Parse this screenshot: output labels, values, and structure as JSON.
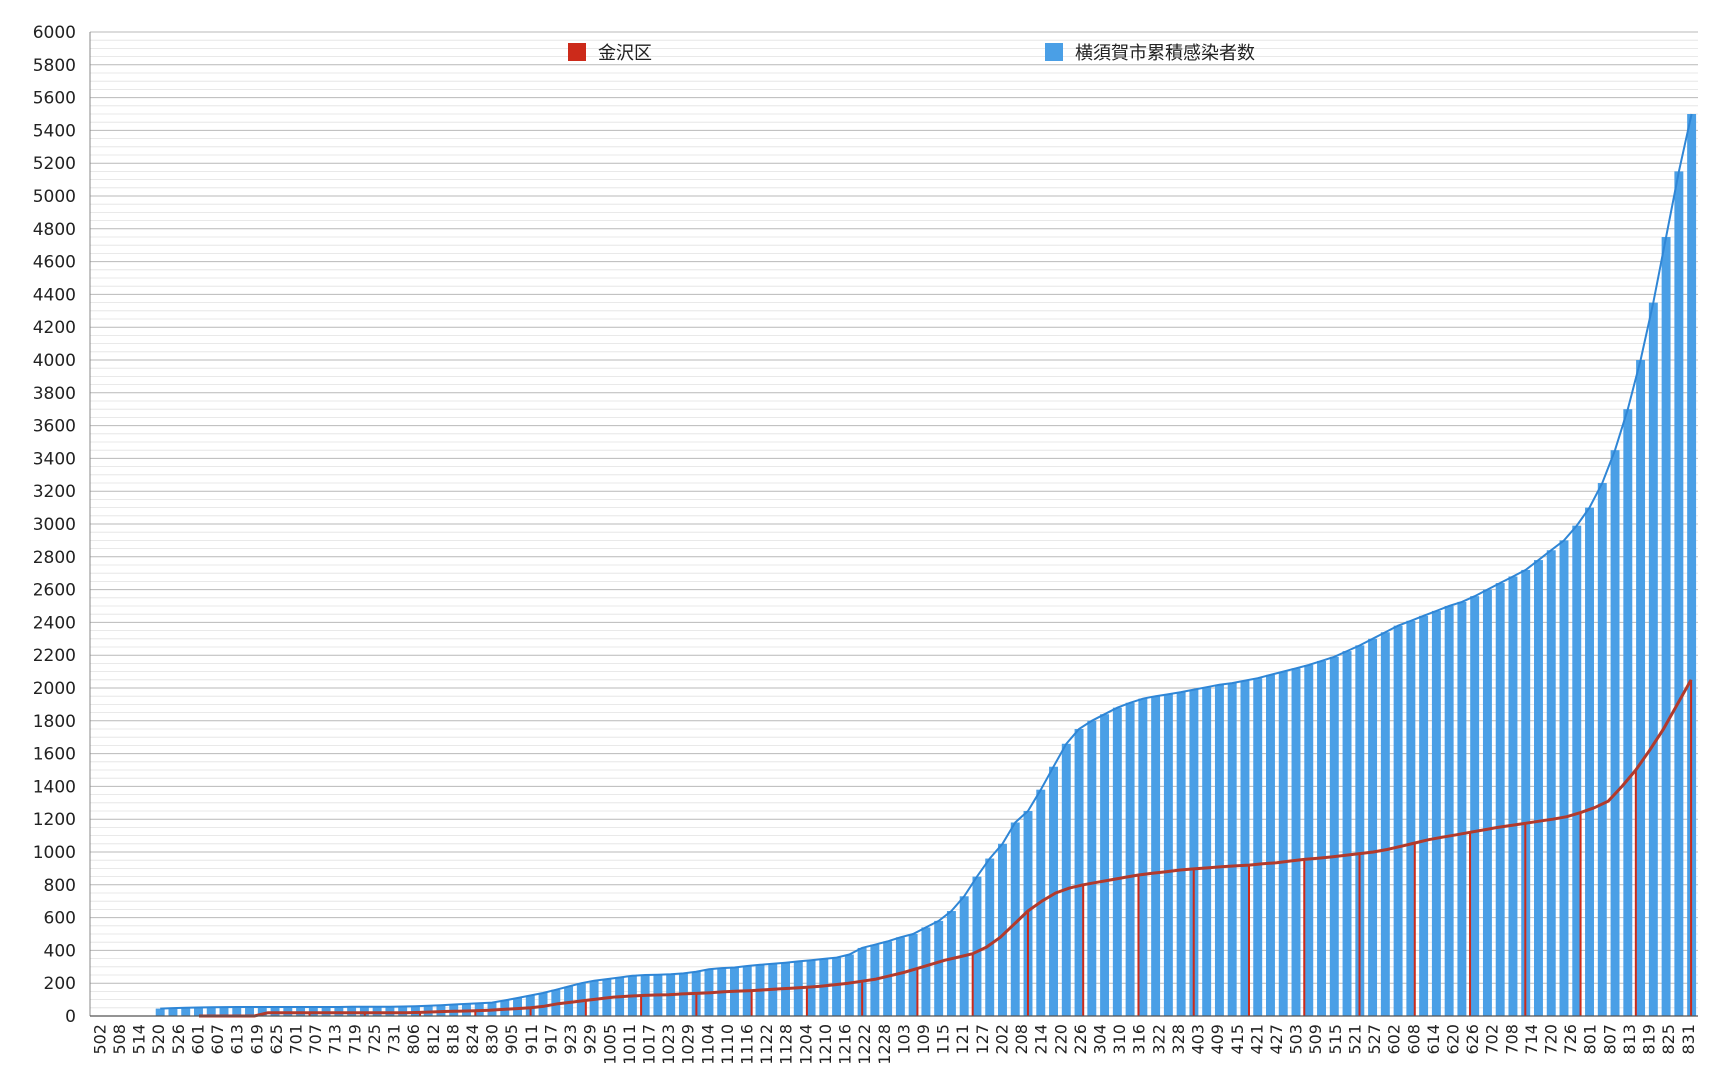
{
  "chart_data": {
    "type": "bar+line",
    "title": "",
    "xlabel": "",
    "ylabel": "",
    "ylim": [
      0,
      6000
    ],
    "ytick_step": 200,
    "grid": true,
    "legend_position": "top",
    "colors": {
      "kanazawa": "#cc2a1a",
      "kanazawa_line": "#b23a2c",
      "yokosuka": "#4a9fe6",
      "grid": "#c8c8c8"
    },
    "series": [
      {
        "name": "金沢区"
      },
      {
        "name": "横須賀市累積感染者数"
      }
    ],
    "x_tick_labels": [
      "502",
      "508",
      "514",
      "520",
      "526",
      "601",
      "607",
      "613",
      "619",
      "625",
      "701",
      "707",
      "713",
      "719",
      "725",
      "731",
      "806",
      "812",
      "818",
      "824",
      "830",
      "905",
      "911",
      "917",
      "923",
      "929",
      "1005",
      "1011",
      "1017",
      "1023",
      "1029",
      "1104",
      "1110",
      "1116",
      "1122",
      "1128",
      "1204",
      "1210",
      "1216",
      "1222",
      "1228",
      "103",
      "109",
      "115",
      "121",
      "127",
      "202",
      "208",
      "214",
      "220",
      "226",
      "304",
      "310",
      "316",
      "322",
      "328",
      "403",
      "409",
      "415",
      "421",
      "427",
      "503",
      "509",
      "515",
      "521",
      "527",
      "602",
      "608",
      "614",
      "620",
      "626",
      "702",
      "708",
      "714",
      "720",
      "726",
      "801",
      "807",
      "813",
      "819",
      "825",
      "831"
    ],
    "yokosuka_values": [
      0,
      0,
      0,
      0,
      0,
      45,
      48,
      50,
      52,
      53,
      54,
      55,
      55,
      55,
      55,
      55,
      55,
      55,
      55,
      55,
      56,
      56,
      56,
      57,
      58,
      60,
      63,
      66,
      70,
      74,
      78,
      82,
      95,
      110,
      125,
      140,
      160,
      180,
      200,
      215,
      225,
      235,
      245,
      250,
      252,
      255,
      260,
      270,
      285,
      292,
      296,
      305,
      312,
      318,
      325,
      333,
      340,
      348,
      356,
      375,
      415,
      435,
      455,
      480,
      500,
      540,
      580,
      640,
      730,
      850,
      960,
      1050,
      1180,
      1250,
      1380,
      1520,
      1660,
      1750,
      1800,
      1840,
      1880,
      1910,
      1935,
      1950,
      1962,
      1975,
      1990,
      2005,
      2020,
      2030,
      2045,
      2060,
      2080,
      2100,
      2120,
      2140,
      2165,
      2190,
      2225,
      2260,
      2300,
      2340,
      2380,
      2410,
      2440,
      2470,
      2500,
      2525,
      2560,
      2600,
      2640,
      2680,
      2720,
      2780,
      2840,
      2900,
      2990,
      3100,
      3250,
      3450,
      3700,
      4000,
      4350,
      4750,
      5150,
      5500
    ],
    "kanazawa_values": [
      0,
      0,
      0,
      0,
      0,
      20,
      20,
      20,
      20,
      20,
      20,
      20,
      20,
      20,
      20,
      20,
      22,
      25,
      28,
      30,
      32,
      35,
      40,
      45,
      50,
      60,
      75,
      85,
      95,
      105,
      115,
      120,
      125,
      128,
      130,
      135,
      138,
      142,
      148,
      152,
      155,
      160,
      165,
      170,
      175,
      182,
      190,
      200,
      212,
      225,
      245,
      265,
      290,
      315,
      340,
      360,
      380,
      420,
      480,
      560,
      640,
      700,
      750,
      780,
      800,
      815,
      830,
      845,
      860,
      870,
      880,
      890,
      897,
      903,
      910,
      915,
      920,
      928,
      935,
      945,
      955,
      962,
      970,
      980,
      990,
      1000,
      1015,
      1035,
      1055,
      1075,
      1090,
      1105,
      1120,
      1135,
      1150,
      1162,
      1175,
      1188,
      1200,
      1215,
      1240,
      1270,
      1310,
      1400,
      1500,
      1620,
      1750,
      1900,
      2050
    ],
    "kanazawa_start_index": 8
  }
}
